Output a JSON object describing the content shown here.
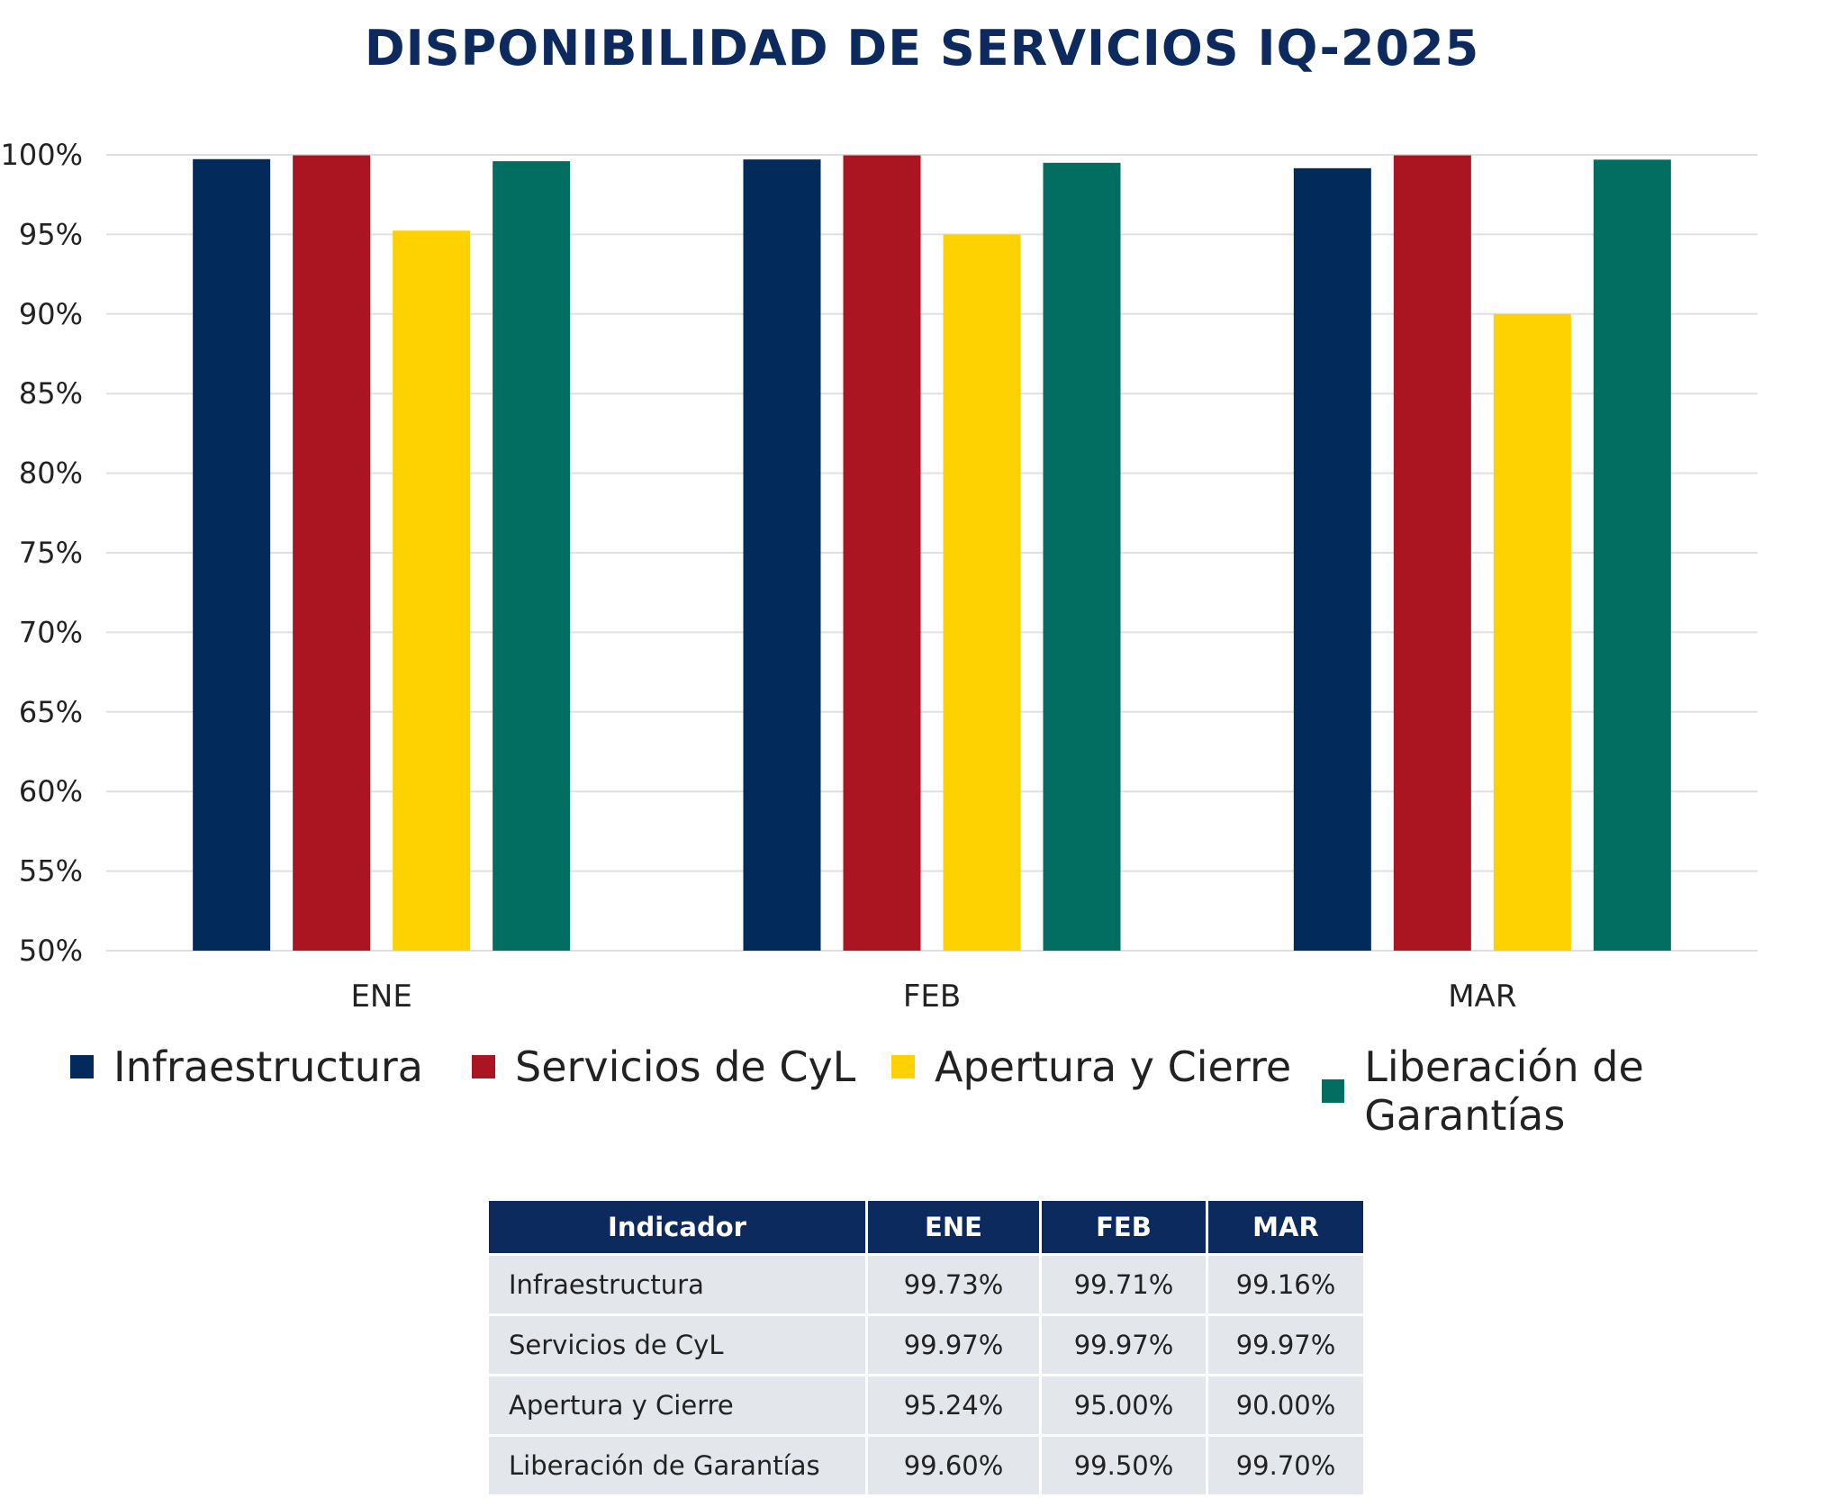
{
  "title": "DISPONIBILIDAD DE SERVICIOS IQ-2025",
  "colors": {
    "Infraestructura": "#022a5a",
    "Servicios de CyL": "#ab1521",
    "Apertura y Cierre": "#fdd200",
    "Liberación de Garantías": "#016e61",
    "grid": "#e0e0e0",
    "header_bg": "#0c2a5e",
    "cell_bg": "#e3e6eb"
  },
  "chart_data": {
    "type": "bar",
    "categories": [
      "ENE",
      "FEB",
      "MAR"
    ],
    "series": [
      {
        "name": "Infraestructura",
        "values": [
          99.73,
          99.71,
          99.16
        ]
      },
      {
        "name": "Servicios de CyL",
        "values": [
          99.97,
          99.97,
          99.97
        ]
      },
      {
        "name": "Apertura y Cierre",
        "values": [
          95.24,
          95.0,
          90.0
        ]
      },
      {
        "name": "Liberación de Garantías",
        "values": [
          99.6,
          99.5,
          99.7
        ]
      }
    ],
    "yticks": [
      "50%",
      "55%",
      "60%",
      "65%",
      "70%",
      "75%",
      "80%",
      "85%",
      "90%",
      "95%",
      "100%"
    ],
    "ylim": [
      50,
      100
    ],
    "grid": true,
    "legend": "bottom",
    "title": "DISPONIBILIDAD DE SERVICIOS IQ-2025"
  },
  "legend": {
    "items": [
      "Infraestructura",
      "Servicios de CyL",
      "Apertura y Cierre",
      "Liberación de Garantías"
    ]
  },
  "table": {
    "headers": [
      "Indicador",
      "ENE",
      "FEB",
      "MAR"
    ],
    "rows": [
      {
        "name": "Infraestructura",
        "values": [
          "99.73%",
          "99.71%",
          "99.16%"
        ]
      },
      {
        "name": "Servicios de CyL",
        "values": [
          "99.97%",
          "99.97%",
          "99.97%"
        ]
      },
      {
        "name": "Apertura y Cierre",
        "values": [
          "95.24%",
          "95.00%",
          "90.00%"
        ]
      },
      {
        "name": "Liberación de Garantías",
        "values": [
          "99.60%",
          "99.50%",
          "99.70%"
        ]
      }
    ]
  }
}
